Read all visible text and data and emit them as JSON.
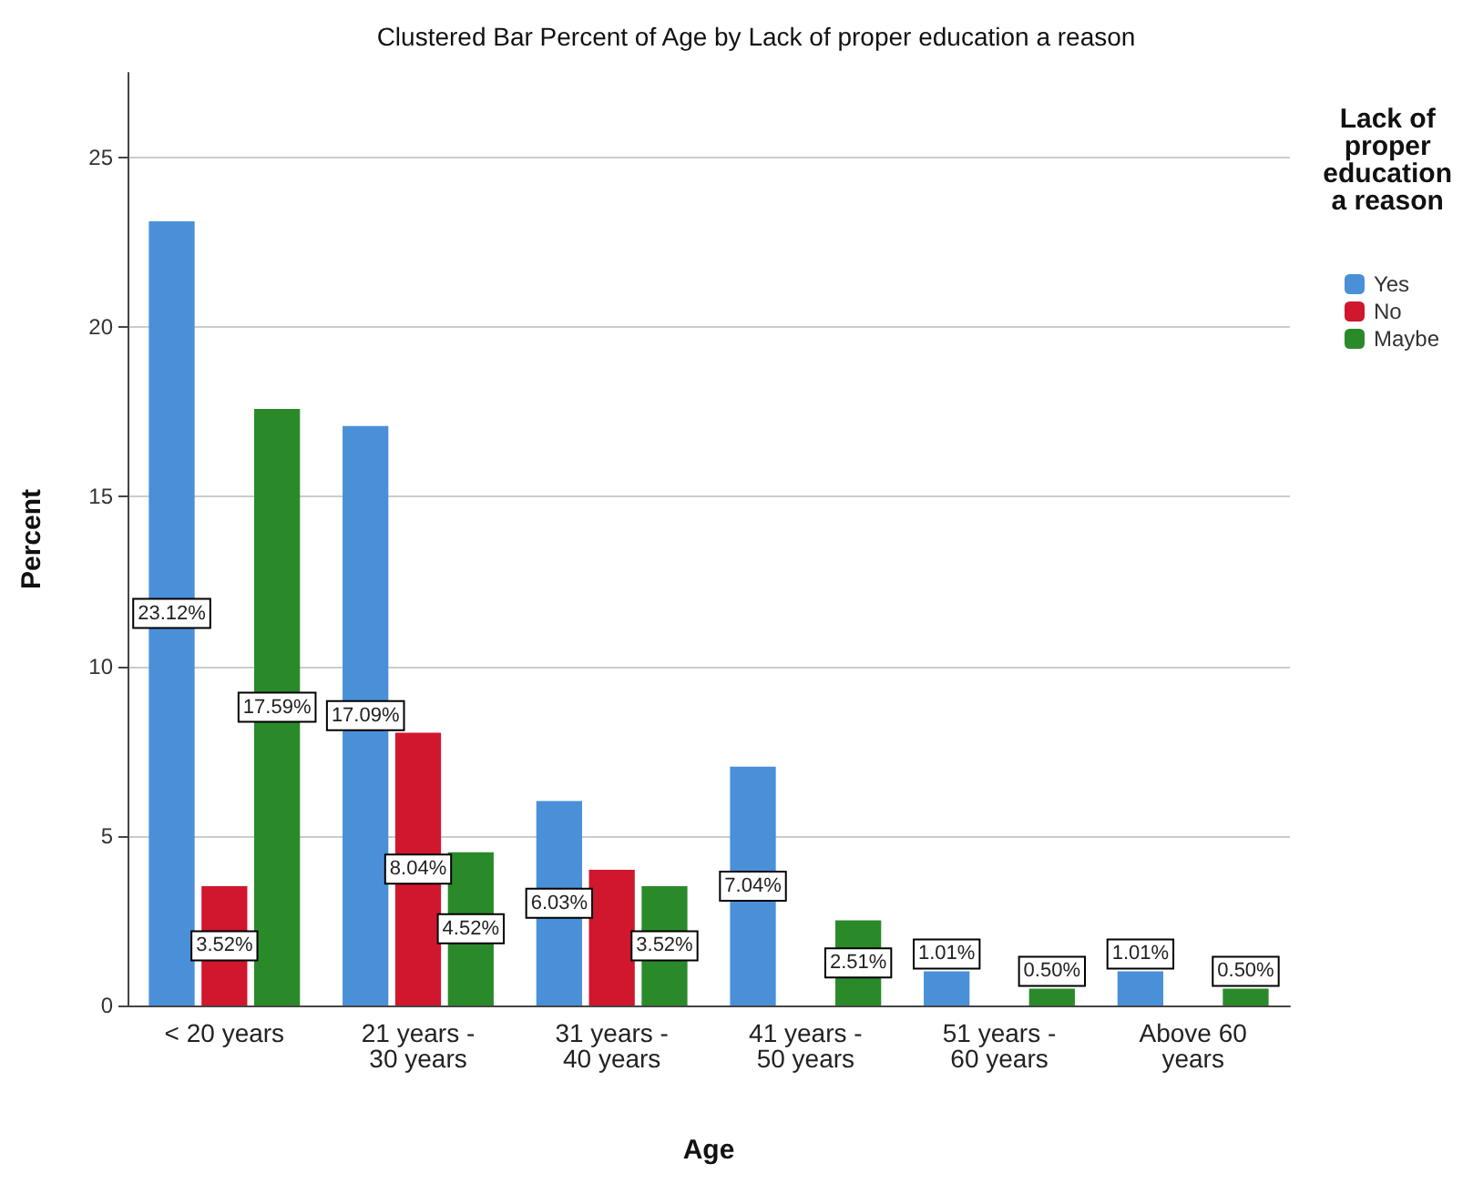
{
  "chart_data": {
    "type": "bar",
    "title": "Clustered Bar Percent of Age by Lack of proper education a reason",
    "xlabel": "Age",
    "ylabel": "Percent",
    "legend_title": "Lack of\nproper\neducation\na reason",
    "categories": [
      "< 20 years",
      "21 years -\n30 years",
      "31 years -\n40 years",
      "41 years -\n50 years",
      "51 years -\n60 years",
      "Above 60\nyears"
    ],
    "series": [
      {
        "name": "Yes",
        "color": "#4a90d9",
        "values": [
          23.12,
          17.09,
          6.03,
          7.04,
          1.01,
          1.01
        ],
        "value_labels": [
          "23.12%",
          "17.09%",
          "6.03%",
          "7.04%",
          "1.01%",
          "1.01%"
        ]
      },
      {
        "name": "No",
        "color": "#d0172e",
        "values": [
          3.52,
          8.04,
          4.0,
          null,
          null,
          null
        ],
        "value_labels": [
          "3.52%",
          "8.04%",
          null,
          null,
          null,
          null
        ]
      },
      {
        "name": "Maybe",
        "color": "#2a8a2a",
        "values": [
          17.59,
          4.52,
          3.52,
          2.51,
          0.5,
          0.5
        ],
        "value_labels": [
          "17.59%",
          "4.52%",
          "3.52%",
          "2.51%",
          "0.50%",
          "0.50%"
        ]
      }
    ],
    "ylim": [
      0,
      27.5
    ],
    "yticks": [
      0,
      5,
      10,
      15,
      20,
      25
    ],
    "grid": "y",
    "legend": "top right"
  }
}
